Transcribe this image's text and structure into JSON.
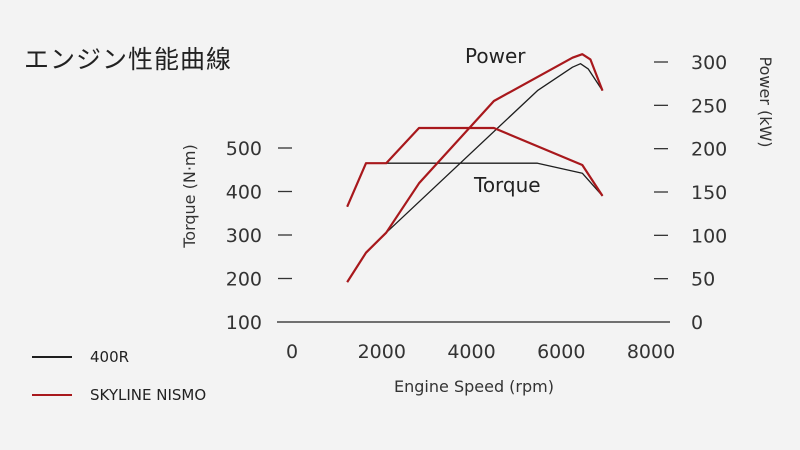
{
  "title": "エンジン性能曲線",
  "chart_data": {
    "type": "line",
    "title": "エンジン性能曲線",
    "xlabel": "Engine Speed (rpm)",
    "ylabel_left": "Torque (N·m)",
    "ylabel_right": "Power (kW)",
    "xlim": [
      0,
      8000
    ],
    "ylim_left": [
      100,
      500
    ],
    "ylim_right": [
      0,
      300
    ],
    "x_ticks": [
      "0",
      "2000",
      "4000",
      "6000",
      "8000"
    ],
    "y_left_ticks": [
      "500",
      "400",
      "300",
      "200",
      "100"
    ],
    "y_right_ticks": [
      "300",
      "250",
      "200",
      "150",
      "100",
      "50",
      "0"
    ],
    "annotations": {
      "power": "Power",
      "torque": "Torque"
    },
    "colors": {
      "400R": "#1e1e1e",
      "SKYLINE NISMO": "#a8181c"
    },
    "series": [
      {
        "name": "400R",
        "metric": "torque",
        "axis": "left",
        "x": [
          1230,
          1650,
          5470,
          6470,
          6920
        ],
        "y": [
          365,
          465,
          465,
          442,
          390
        ]
      },
      {
        "name": "SKYLINE NISMO",
        "metric": "torque",
        "axis": "left",
        "x": [
          1230,
          1650,
          2100,
          2830,
          4500,
          6470,
          6920
        ],
        "y": [
          365,
          465,
          465,
          546,
          546,
          461,
          390
        ]
      },
      {
        "name": "400R",
        "metric": "power",
        "axis": "right",
        "x": [
          1230,
          1650,
          2100,
          5470,
          6250,
          6430,
          6600,
          6920
        ],
        "y": [
          46,
          80,
          103,
          267,
          294,
          298,
          292,
          267
        ]
      },
      {
        "name": "SKYLINE NISMO",
        "metric": "power",
        "axis": "right",
        "x": [
          1230,
          1650,
          2100,
          2830,
          4500,
          6250,
          6470,
          6650,
          6920
        ],
        "y": [
          46,
          80,
          103,
          160,
          255,
          305,
          309,
          303,
          267
        ]
      }
    ],
    "legend": {
      "placement": "bottom-left",
      "entries": [
        "400R",
        "SKYLINE NISMO"
      ]
    }
  }
}
